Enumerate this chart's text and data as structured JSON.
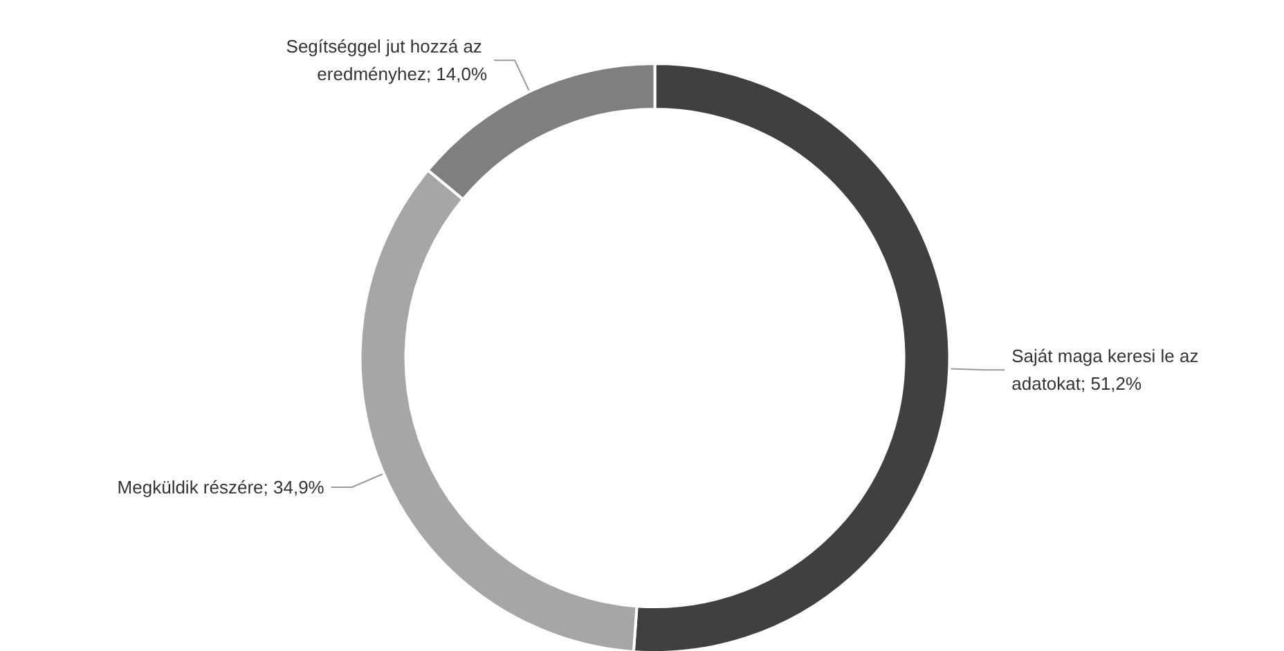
{
  "chart_data": {
    "type": "donut",
    "categories": [
      "Saját maga keresi le az adatokat",
      "Megküldik részére",
      "Segítséggel jut hozzá az eredményhez"
    ],
    "values": [
      51.2,
      34.9,
      14.0
    ],
    "value_labels": [
      "51,2%",
      "34,9%",
      "14,0%"
    ],
    "colors": [
      "#404040",
      "#a6a6a6",
      "#7f7f7f"
    ],
    "legend": false
  }
}
